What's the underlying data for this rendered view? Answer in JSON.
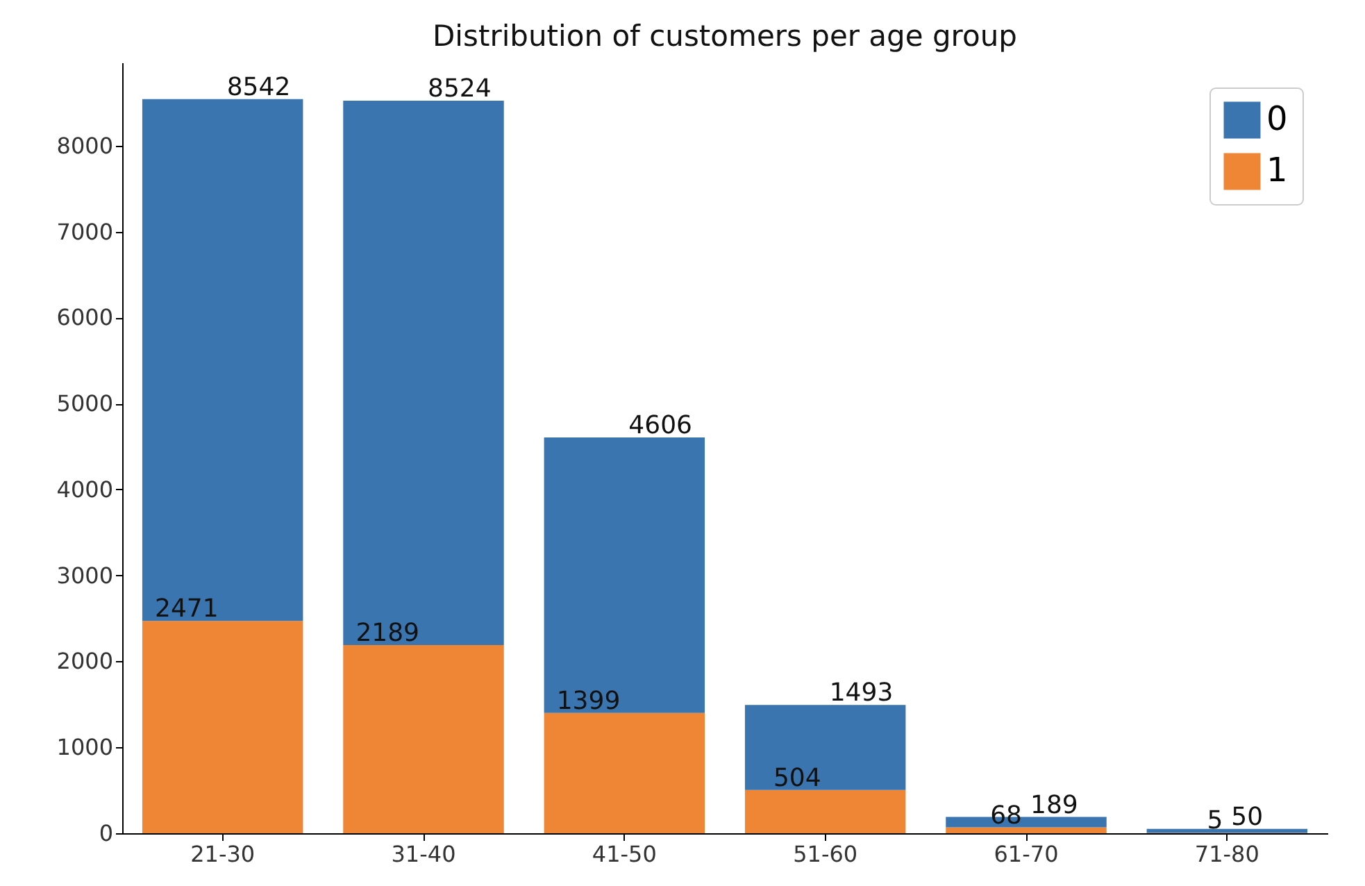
{
  "chart_data": {
    "type": "bar",
    "title": "Distribution of customers per age group",
    "categories": [
      "21-30",
      "31-40",
      "41-50",
      "51-60",
      "61-70",
      "71-80"
    ],
    "stacked": true,
    "series": [
      {
        "name": "1",
        "color": "#ee8636",
        "values": [
          2471,
          2189,
          1399,
          504,
          68,
          5
        ],
        "value_labels": [
          "2471",
          "2189",
          "1399",
          "504",
          "68",
          "5"
        ]
      },
      {
        "name": "0",
        "color": "#3a75b0",
        "values": [
          6071,
          6335,
          3207,
          989,
          121,
          45
        ]
      }
    ],
    "totals": [
      "8542",
      "8524",
      "4606",
      "1493",
      "189",
      "50"
    ],
    "ylim": [
      0,
      8969
    ],
    "yticks": [
      0,
      1000,
      2000,
      3000,
      4000,
      5000,
      6000,
      7000,
      8000
    ],
    "legend": "top right",
    "grid": false
  }
}
